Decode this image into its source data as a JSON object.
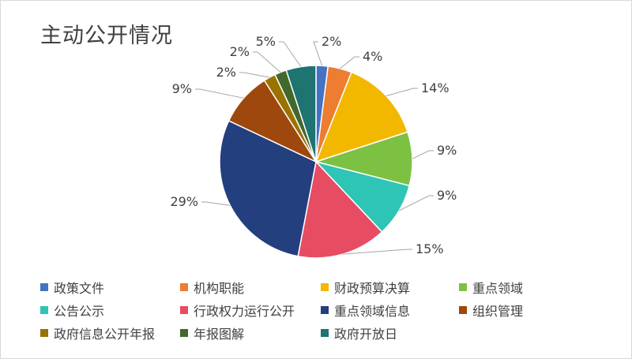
{
  "chart_data": {
    "type": "pie",
    "title": "主动公开情况",
    "legend_position": "bottom",
    "slices": [
      {
        "name": "政策文件",
        "value": 2,
        "label": "2%",
        "color": "#4472c4"
      },
      {
        "name": "机构职能",
        "value": 4,
        "label": "4%",
        "color": "#ed7d31"
      },
      {
        "name": "财政预算决算",
        "value": 14,
        "label": "14%",
        "color": "#f2b800"
      },
      {
        "name": "重点领域",
        "value": 9,
        "label": "9%",
        "color": "#7cc142"
      },
      {
        "name": "公告公示",
        "value": 9,
        "label": "9%",
        "color": "#2ec4b6"
      },
      {
        "name": "行政权力运行公开",
        "value": 15,
        "label": "15%",
        "color": "#e64c62"
      },
      {
        "name": "重点领域信息",
        "value": 29,
        "label": "29%",
        "color": "#233f7e"
      },
      {
        "name": "组织管理",
        "value": 9,
        "label": "9%",
        "color": "#9e480e"
      },
      {
        "name": "政府信息公开年报",
        "value": 2,
        "label": "2%",
        "color": "#997300"
      },
      {
        "name": "年报图解",
        "value": 2,
        "label": "2%",
        "color": "#43682b"
      },
      {
        "name": "政府开放日",
        "value": 5,
        "label": "5%",
        "color": "#1d7470"
      }
    ]
  }
}
